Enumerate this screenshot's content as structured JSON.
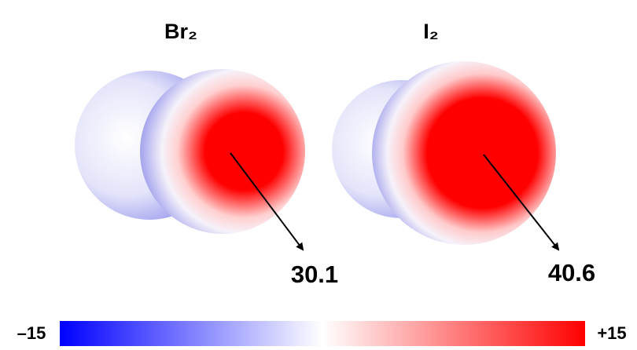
{
  "molecules": [
    {
      "label": "Br₂",
      "value": 30.1
    },
    {
      "label": "I₂",
      "value": 40.6
    }
  ],
  "scale": {
    "min_label": "–15",
    "max_label": "+15"
  }
}
